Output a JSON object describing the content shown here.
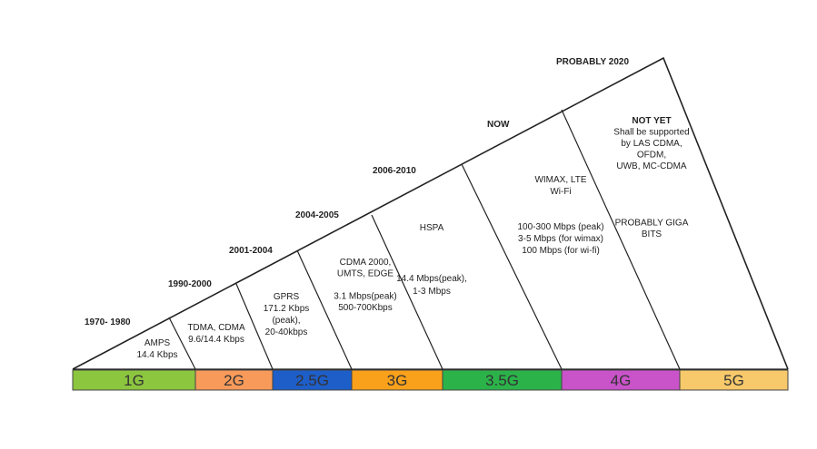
{
  "generations": [
    {
      "label": "1G",
      "color": "#8cc63f",
      "years": "1970- 1980",
      "desc": [
        "AMPS",
        "14.4 Kbps"
      ],
      "desc_bold": false
    },
    {
      "label": "2G",
      "color": "#f79a5a",
      "years": "1990-2000",
      "desc": [
        "TDMA, CDMA",
        "9.6/14.4 Kbps"
      ],
      "desc_bold": false
    },
    {
      "label": "2.5G",
      "color": "#1e5ec8",
      "years": "2001-2004",
      "desc": [
        "GPRS",
        "171.2 Kbps",
        "(peak),",
        "20-40kbps"
      ],
      "desc_bold": false
    },
    {
      "label": "3G",
      "color": "#f9a11b",
      "years": "2004-2005",
      "desc": [
        "CDMA 2000,",
        "UMTS, EDGE",
        "",
        "3.1 Mbps(peak)",
        "500-700Kbps"
      ],
      "desc_bold": false
    },
    {
      "label": "3.5G",
      "color": "#2bb34a",
      "years": "2006-2010",
      "desc": [
        "HSPA",
        "",
        "",
        "",
        "14.4 Mbps(peak),",
        "1-3 Mbps"
      ],
      "desc_bold": false
    },
    {
      "label": "4G",
      "color": "#c953c9",
      "years": "NOW",
      "desc": [
        "WIMAX, LTE",
        "Wi-Fi",
        "",
        "",
        "100-300 Mbps (peak)",
        "3-5 Mbps (for wimax)",
        "100 Mbps (for wi-fi)"
      ],
      "desc_bold": false
    },
    {
      "label": "5G",
      "color": "#f7c96a",
      "years": "PROBABLY 2020",
      "desc_title": "NOT YET",
      "desc": [
        "Shall be supported",
        "by LAS CDMA,",
        "OFDM,",
        "UWB, MC-CDMA",
        "",
        "",
        "",
        "",
        "PROBABLY GIGA",
        "BITS"
      ],
      "desc_bold": false
    }
  ]
}
